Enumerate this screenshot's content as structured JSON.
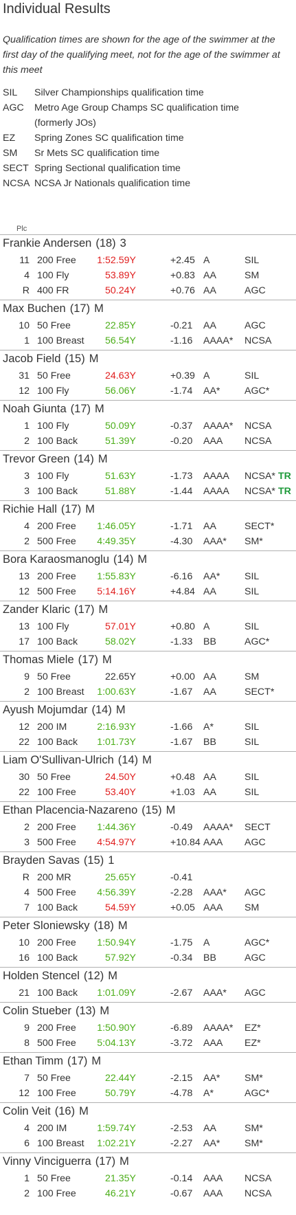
{
  "title": "Individual Results",
  "intro": "Qualification times are shown for the age of the swimmer at the first day of the qualifying meet, not for the age of the swimmer at this meet",
  "legend": [
    {
      "abbr": "SIL",
      "desc": "Silver Championships qualification time"
    },
    {
      "abbr": "AGC",
      "desc": "Metro Age Group Champs SC qualification time",
      "desc2": "(formerly JOs)"
    },
    {
      "abbr": "EZ",
      "desc": "Spring Zones SC qualification time"
    },
    {
      "abbr": "SM",
      "desc": "Sr Mets SC qualification time"
    },
    {
      "abbr": "SECT",
      "desc": "Spring Sectional qualification time"
    },
    {
      "abbr": "NCSA",
      "desc": "NCSA Jr Nationals qualification time"
    }
  ],
  "plc_header": "Plc",
  "colors": {
    "red": "#e01e1e",
    "green": "#4cae1a",
    "record": "#1e9a3a"
  },
  "swimmers": [
    {
      "name": "Frankie Andersen",
      "age": "(18)",
      "flag": "3",
      "results": [
        {
          "plc": "11",
          "event": "200 Free",
          "time": "1:52.59Y",
          "color": "red",
          "diff": "+2.45",
          "std": "A",
          "qual": "SIL",
          "rec": ""
        },
        {
          "plc": "4",
          "event": "100 Fly",
          "time": "53.89Y",
          "color": "red",
          "diff": "+0.83",
          "std": "AA",
          "qual": "SM",
          "rec": ""
        },
        {
          "plc": "R",
          "event": "400 FR",
          "time": "50.24Y",
          "color": "red",
          "diff": "+0.76",
          "std": "AA",
          "qual": "AGC",
          "rec": ""
        }
      ]
    },
    {
      "name": "Max Buchen",
      "age": "(17)",
      "flag": "M",
      "results": [
        {
          "plc": "10",
          "event": "50 Free",
          "time": "22.85Y",
          "color": "green",
          "diff": "-0.21",
          "std": "AA",
          "qual": "AGC",
          "rec": ""
        },
        {
          "plc": "1",
          "event": "100 Breast",
          "time": "56.54Y",
          "color": "green",
          "diff": "-1.16",
          "std": "AAAA*",
          "qual": "NCSA",
          "rec": ""
        }
      ]
    },
    {
      "name": "Jacob Field",
      "age": "(15)",
      "flag": "M",
      "results": [
        {
          "plc": "31",
          "event": "50 Free",
          "time": "24.63Y",
          "color": "red",
          "diff": "+0.39",
          "std": "A",
          "qual": "SIL",
          "rec": ""
        },
        {
          "plc": "12",
          "event": "100 Fly",
          "time": "56.06Y",
          "color": "green",
          "diff": "-1.74",
          "std": "AA*",
          "qual": "AGC*",
          "rec": ""
        }
      ]
    },
    {
      "name": "Noah Giunta",
      "age": "(17)",
      "flag": "M",
      "results": [
        {
          "plc": "1",
          "event": "100 Fly",
          "time": "50.09Y",
          "color": "green",
          "diff": "-0.37",
          "std": "AAAA*",
          "qual": "NCSA",
          "rec": ""
        },
        {
          "plc": "2",
          "event": "100 Back",
          "time": "51.39Y",
          "color": "green",
          "diff": "-0.20",
          "std": "AAA",
          "qual": "NCSA",
          "rec": ""
        }
      ]
    },
    {
      "name": "Trevor Green",
      "age": "(14)",
      "flag": "M",
      "results": [
        {
          "plc": "3",
          "event": "100 Fly",
          "time": "51.63Y",
          "color": "green",
          "diff": "-1.73",
          "std": "AAAA",
          "qual": "NCSA*",
          "rec": "TR"
        },
        {
          "plc": "3",
          "event": "100 Back",
          "time": "51.88Y",
          "color": "green",
          "diff": "-1.44",
          "std": "AAAA",
          "qual": "NCSA*",
          "rec": "TR"
        }
      ]
    },
    {
      "name": "Richie Hall",
      "age": "(17)",
      "flag": "M",
      "results": [
        {
          "plc": "4",
          "event": "200 Free",
          "time": "1:46.05Y",
          "color": "green",
          "diff": "-1.71",
          "std": "AA",
          "qual": "SECT*",
          "rec": ""
        },
        {
          "plc": "2",
          "event": "500 Free",
          "time": "4:49.35Y",
          "color": "green",
          "diff": "-4.30",
          "std": "AAA*",
          "qual": "SM*",
          "rec": ""
        }
      ]
    },
    {
      "name": "Bora Karaosmanoglu",
      "age": "(14)",
      "flag": "M",
      "results": [
        {
          "plc": "13",
          "event": "200 Free",
          "time": "1:55.83Y",
          "color": "green",
          "diff": "-6.16",
          "std": "AA*",
          "qual": "SIL",
          "rec": ""
        },
        {
          "plc": "12",
          "event": "500 Free",
          "time": "5:14.16Y",
          "color": "red",
          "diff": "+4.84",
          "std": "AA",
          "qual": "SIL",
          "rec": ""
        }
      ]
    },
    {
      "name": "Zander Klaric",
      "age": "(17)",
      "flag": "M",
      "results": [
        {
          "plc": "13",
          "event": "100 Fly",
          "time": "57.01Y",
          "color": "red",
          "diff": "+0.80",
          "std": "A",
          "qual": "SIL",
          "rec": ""
        },
        {
          "plc": "17",
          "event": "100 Back",
          "time": "58.02Y",
          "color": "green",
          "diff": "-1.33",
          "std": "BB",
          "qual": "AGC*",
          "rec": ""
        }
      ]
    },
    {
      "name": "Thomas Miele",
      "age": "(17)",
      "flag": "M",
      "results": [
        {
          "plc": "9",
          "event": "50 Free",
          "time": "22.65Y",
          "color": "none",
          "diff": "+0.00",
          "std": "AA",
          "qual": "SM",
          "rec": ""
        },
        {
          "plc": "2",
          "event": "100 Breast",
          "time": "1:00.63Y",
          "color": "green",
          "diff": "-1.67",
          "std": "AA",
          "qual": "SECT*",
          "rec": ""
        }
      ]
    },
    {
      "name": "Ayush Mojumdar",
      "age": "(14)",
      "flag": "M",
      "results": [
        {
          "plc": "12",
          "event": "200 IM",
          "time": "2:16.93Y",
          "color": "green",
          "diff": "-1.66",
          "std": "A*",
          "qual": "SIL",
          "rec": ""
        },
        {
          "plc": "22",
          "event": "100 Back",
          "time": "1:01.73Y",
          "color": "green",
          "diff": "-1.67",
          "std": "BB",
          "qual": "SIL",
          "rec": ""
        }
      ]
    },
    {
      "name": "Liam O'Sullivan-Ulrich",
      "age": "(14)",
      "flag": "M",
      "results": [
        {
          "plc": "30",
          "event": "50 Free",
          "time": "24.50Y",
          "color": "red",
          "diff": "+0.48",
          "std": "AA",
          "qual": "SIL",
          "rec": ""
        },
        {
          "plc": "22",
          "event": "100 Free",
          "time": "53.40Y",
          "color": "red",
          "diff": "+1.03",
          "std": "AA",
          "qual": "SIL",
          "rec": ""
        }
      ]
    },
    {
      "name": "Ethan Placencia-Nazareno",
      "age": "(15)",
      "flag": "M",
      "results": [
        {
          "plc": "2",
          "event": "200 Free",
          "time": "1:44.36Y",
          "color": "green",
          "diff": "-0.49",
          "std": "AAAA*",
          "qual": "SECT",
          "rec": ""
        },
        {
          "plc": "3",
          "event": "500 Free",
          "time": "4:54.97Y",
          "color": "red",
          "diff": "+10.84",
          "std": "AAA",
          "qual": "AGC",
          "rec": ""
        }
      ]
    },
    {
      "name": "Brayden Savas",
      "age": "(15)",
      "flag": "1",
      "results": [
        {
          "plc": "R",
          "event": "200 MR",
          "time": "25.65Y",
          "color": "green",
          "diff": "-0.41",
          "std": "",
          "qual": "",
          "rec": ""
        },
        {
          "plc": "4",
          "event": "500 Free",
          "time": "4:56.39Y",
          "color": "green",
          "diff": "-2.28",
          "std": "AAA*",
          "qual": "AGC",
          "rec": ""
        },
        {
          "plc": "7",
          "event": "100 Back",
          "time": "54.59Y",
          "color": "red",
          "diff": "+0.05",
          "std": "AAA",
          "qual": "SM",
          "rec": ""
        }
      ]
    },
    {
      "name": "Peter Sloniewsky",
      "age": "(18)",
      "flag": "M",
      "results": [
        {
          "plc": "10",
          "event": "200 Free",
          "time": "1:50.94Y",
          "color": "green",
          "diff": "-1.75",
          "std": "A",
          "qual": "AGC*",
          "rec": ""
        },
        {
          "plc": "16",
          "event": "100 Back",
          "time": "57.92Y",
          "color": "green",
          "diff": "-0.34",
          "std": "BB",
          "qual": "AGC",
          "rec": ""
        }
      ]
    },
    {
      "name": "Holden Stencel",
      "age": "(12)",
      "flag": "M",
      "results": [
        {
          "plc": "21",
          "event": "100 Back",
          "time": "1:01.09Y",
          "color": "green",
          "diff": "-2.67",
          "std": "AAA*",
          "qual": "AGC",
          "rec": ""
        }
      ]
    },
    {
      "name": "Colin Stueber",
      "age": "(13)",
      "flag": "M",
      "results": [
        {
          "plc": "9",
          "event": "200 Free",
          "time": "1:50.90Y",
          "color": "green",
          "diff": "-6.89",
          "std": "AAAA*",
          "qual": "EZ*",
          "rec": ""
        },
        {
          "plc": "8",
          "event": "500 Free",
          "time": "5:04.13Y",
          "color": "green",
          "diff": "-3.72",
          "std": "AAA",
          "qual": "EZ*",
          "rec": ""
        }
      ]
    },
    {
      "name": "Ethan Timm",
      "age": "(17)",
      "flag": "M",
      "results": [
        {
          "plc": "7",
          "event": "50 Free",
          "time": "22.44Y",
          "color": "green",
          "diff": "-2.15",
          "std": "AA*",
          "qual": "SM*",
          "rec": ""
        },
        {
          "plc": "12",
          "event": "100 Free",
          "time": "50.79Y",
          "color": "green",
          "diff": "-4.78",
          "std": "A*",
          "qual": "AGC*",
          "rec": ""
        }
      ]
    },
    {
      "name": "Colin Veit",
      "age": "(16)",
      "flag": "M",
      "results": [
        {
          "plc": "4",
          "event": "200 IM",
          "time": "1:59.74Y",
          "color": "green",
          "diff": "-2.53",
          "std": "AA",
          "qual": "SM*",
          "rec": ""
        },
        {
          "plc": "6",
          "event": "100 Breast",
          "time": "1:02.21Y",
          "color": "green",
          "diff": "-2.27",
          "std": "AA*",
          "qual": "SM*",
          "rec": ""
        }
      ]
    },
    {
      "name": "Vinny Vinciguerra",
      "age": "(17)",
      "flag": "M",
      "results": [
        {
          "plc": "1",
          "event": "50 Free",
          "time": "21.35Y",
          "color": "green",
          "diff": "-0.14",
          "std": "AAA",
          "qual": "NCSA",
          "rec": ""
        },
        {
          "plc": "2",
          "event": "100 Free",
          "time": "46.21Y",
          "color": "green",
          "diff": "-0.67",
          "std": "AAA",
          "qual": "NCSA",
          "rec": ""
        }
      ]
    }
  ]
}
